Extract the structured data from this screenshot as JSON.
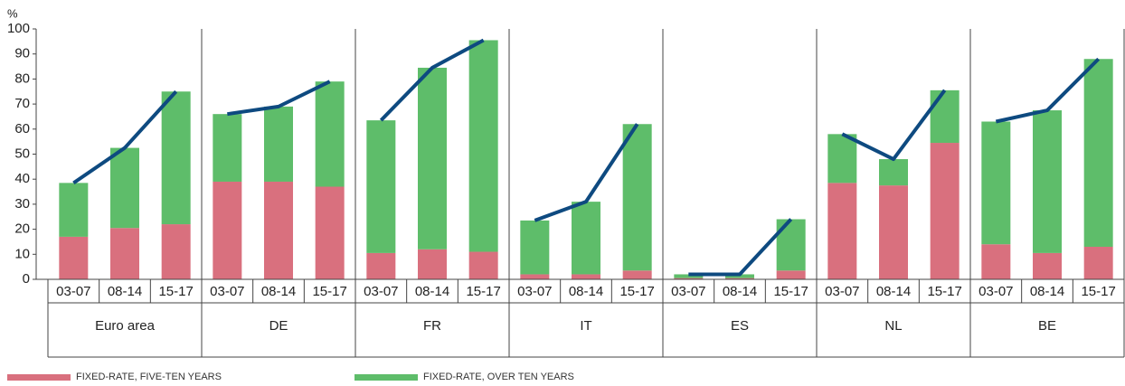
{
  "chart_data": {
    "type": "bar",
    "stacked": true,
    "y_label": "%",
    "categories": [
      "03-07",
      "08-14",
      "15-17",
      "03-07",
      "08-14",
      "15-17",
      "03-07",
      "08-14",
      "15-17",
      "03-07",
      "08-14",
      "15-17",
      "03-07",
      "08-14",
      "15-17",
      "03-07",
      "08-14",
      "15-17",
      "03-07",
      "08-14",
      "15-17"
    ],
    "groups": [
      "Euro area",
      "DE",
      "FR",
      "IT",
      "ES",
      "NL",
      "BE"
    ],
    "group_size": 3,
    "series": [
      {
        "name": "FIXED-RATE, FIVE-TEN YEARS",
        "color": "#d9707e",
        "values": [
          17,
          20.5,
          22,
          39,
          39,
          37,
          10.5,
          12,
          11,
          2,
          2,
          3.5,
          0.5,
          0.5,
          3.5,
          38.5,
          37.5,
          54.5,
          14,
          10.5,
          13
        ]
      },
      {
        "name": "FIXED-RATE, OVER TEN YEARS",
        "color": "#5ebd6a",
        "values": [
          21.5,
          32,
          53,
          27,
          30,
          42,
          53,
          72.5,
          84.5,
          21.5,
          29,
          58.5,
          1.5,
          1.5,
          20.5,
          19.5,
          10.5,
          21,
          49,
          57,
          75
        ]
      },
      {
        "type": "line",
        "color": "#0e4a80",
        "values": [
          38.5,
          52.5,
          75,
          66,
          69,
          79,
          63.5,
          84.5,
          95.5,
          23.5,
          31,
          62,
          2,
          2,
          24,
          58,
          48,
          75.5,
          63,
          67.5,
          88
        ]
      }
    ],
    "ylim": [
      0,
      100
    ],
    "yticks": [
      0,
      10,
      20,
      30,
      40,
      50,
      60,
      70,
      80,
      90,
      100
    ],
    "grid": false
  }
}
